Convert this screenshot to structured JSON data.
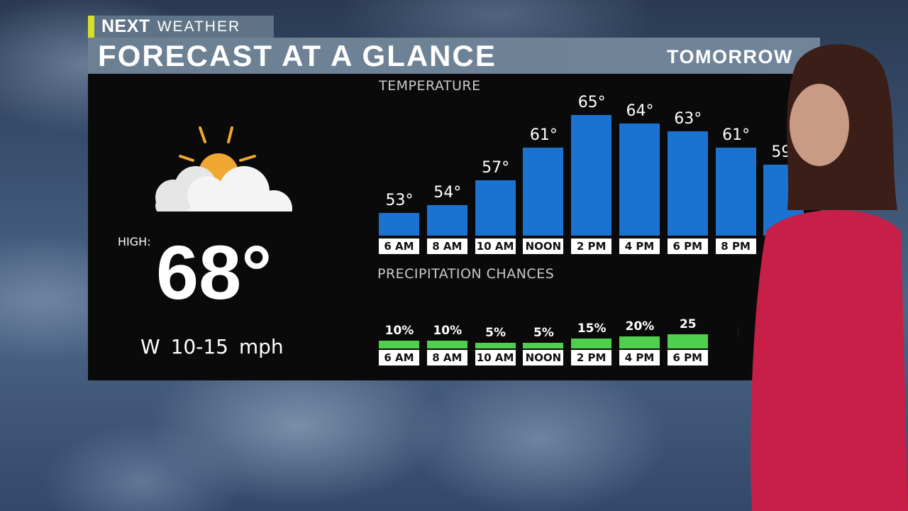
{
  "brand": {
    "logo_text": "NEXT",
    "product": "WEATHER"
  },
  "title": "FORECAST AT A GLANCE",
  "day": "TOMORROW",
  "summary": {
    "icon": "partly-sunny-icon",
    "high_label": "HIGH:",
    "high_value": "68°",
    "wind_dir": "W",
    "wind_speed": "10-15 mph"
  },
  "chart_data": [
    {
      "type": "bar",
      "title": "TEMPERATURE",
      "categories": [
        "6 AM",
        "8 AM",
        "10 AM",
        "NOON",
        "2 PM",
        "4 PM",
        "6 PM",
        "8 PM"
      ],
      "values": [
        53,
        54,
        57,
        61,
        65,
        64,
        63,
        61
      ],
      "labels": [
        "53°",
        "54°",
        "57°",
        "61°",
        "65°",
        "64°",
        "63°",
        "61°"
      ],
      "partial_label": "59",
      "color": "#1a72d1"
    },
    {
      "type": "bar",
      "title": "PRECIPITATION CHANCES",
      "categories": [
        "6 AM",
        "8 AM",
        "10 AM",
        "NOON",
        "2 PM",
        "4 PM",
        "6 PM"
      ],
      "values": [
        10,
        10,
        5,
        5,
        15,
        20,
        25
      ],
      "labels": [
        "10%",
        "10%",
        "5%",
        "5%",
        "15%",
        "20%",
        "25"
      ],
      "color": "#4ed04c"
    }
  ]
}
